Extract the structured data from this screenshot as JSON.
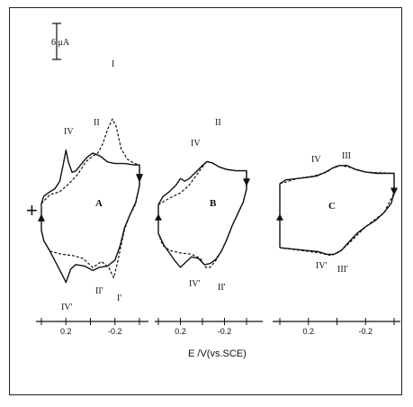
{
  "chart_data": {
    "type": "line",
    "scale_bar": {
      "label": "6 μA"
    },
    "xlabel": "E  /V(vs.SCE)",
    "plus_marker": "+",
    "panels": [
      {
        "label": "A",
        "xlim": [
          0.45,
          -0.45
        ],
        "ticks": [
          0.2,
          -0.2
        ],
        "tick_labels": [
          "0.2",
          "-0.2"
        ],
        "peak_labels": [
          "I",
          "II",
          "IV",
          "IV'",
          "II'",
          "I'"
        ],
        "series": [
          {
            "style": "solid",
            "points": [
              [
                0.4,
                -0.35
              ],
              [
                0.4,
                0.6
              ],
              [
                0.38,
                1.1
              ],
              [
                0.33,
                1.4
              ],
              [
                0.29,
                1.6
              ],
              [
                0.25,
                2.1
              ],
              [
                0.22,
                3.3
              ],
              [
                0.2,
                4.2
              ],
              [
                0.18,
                3.4
              ],
              [
                0.15,
                2.7
              ],
              [
                0.12,
                2.8
              ],
              [
                0.08,
                3.2
              ],
              [
                0.03,
                3.7
              ],
              [
                -0.02,
                4.0
              ],
              [
                -0.08,
                3.8
              ],
              [
                -0.14,
                3.4
              ],
              [
                -0.2,
                3.3
              ],
              [
                -0.28,
                3.3
              ],
              [
                -0.36,
                3.2
              ],
              [
                -0.4,
                3.2
              ],
              [
                -0.4,
                2.6
              ],
              [
                -0.4,
                1.8
              ],
              [
                -0.37,
                0.7
              ],
              [
                -0.32,
                -0.2
              ],
              [
                -0.28,
                -1.0
              ],
              [
                -0.24,
                -2.3
              ],
              [
                -0.2,
                -3.2
              ],
              [
                -0.14,
                -3.6
              ],
              [
                -0.07,
                -3.7
              ],
              [
                -0.02,
                -3.9
              ],
              [
                0.05,
                -3.6
              ],
              [
                0.12,
                -3.5
              ],
              [
                0.16,
                -3.8
              ],
              [
                0.2,
                -4.7
              ],
              [
                0.23,
                -4.2
              ],
              [
                0.28,
                -3.4
              ],
              [
                0.33,
                -2.6
              ],
              [
                0.38,
                -1.9
              ],
              [
                0.4,
                -1.2
              ],
              [
                0.4,
                -0.35
              ]
            ]
          },
          {
            "style": "dashed",
            "points": [
              [
                0.4,
                0.6
              ],
              [
                0.33,
                1.2
              ],
              [
                0.25,
                1.4
              ],
              [
                0.18,
                1.9
              ],
              [
                0.1,
                2.6
              ],
              [
                0.04,
                3.4
              ],
              [
                -0.02,
                3.8
              ],
              [
                -0.06,
                4.0
              ],
              [
                -0.1,
                4.6
              ],
              [
                -0.14,
                5.6
              ],
              [
                -0.18,
                6.3
              ],
              [
                -0.21,
                5.8
              ],
              [
                -0.25,
                4.3
              ],
              [
                -0.3,
                3.6
              ],
              [
                -0.36,
                3.3
              ],
              [
                -0.4,
                3.2
              ],
              [
                -0.4,
                1.8
              ],
              [
                -0.37,
                0.6
              ],
              [
                -0.32,
                -0.2
              ],
              [
                -0.28,
                -1.1
              ],
              [
                -0.25,
                -2.2
              ],
              [
                -0.22,
                -3.4
              ],
              [
                -0.19,
                -4.4
              ],
              [
                -0.15,
                -3.7
              ],
              [
                -0.09,
                -3.3
              ],
              [
                -0.02,
                -3.7
              ],
              [
                0.06,
                -3.1
              ],
              [
                0.14,
                -2.9
              ],
              [
                0.24,
                -2.8
              ],
              [
                0.33,
                -2.6
              ],
              [
                0.38,
                -1.9
              ],
              [
                0.4,
                -1.2
              ]
            ]
          }
        ]
      },
      {
        "label": "B",
        "xlim": [
          0.45,
          -0.45
        ],
        "ticks": [
          0.2,
          -0.2
        ],
        "tick_labels": [
          "0.2",
          "-0.2"
        ],
        "peak_labels": [
          "II",
          "IV",
          "IV'",
          "II'"
        ],
        "series": [
          {
            "style": "solid",
            "points": [
              [
                0.4,
                -0.35
              ],
              [
                0.4,
                0.6
              ],
              [
                0.36,
                1.2
              ],
              [
                0.3,
                1.6
              ],
              [
                0.24,
                2.1
              ],
              [
                0.2,
                2.6
              ],
              [
                0.16,
                2.4
              ],
              [
                0.12,
                2.6
              ],
              [
                0.06,
                3.1
              ],
              [
                0.0,
                3.6
              ],
              [
                -0.04,
                3.9
              ],
              [
                -0.09,
                3.8
              ],
              [
                -0.15,
                3.5
              ],
              [
                -0.22,
                3.3
              ],
              [
                -0.3,
                3.2
              ],
              [
                -0.38,
                3.2
              ],
              [
                -0.4,
                3.2
              ],
              [
                -0.4,
                2.6
              ],
              [
                -0.4,
                1.8
              ],
              [
                -0.37,
                0.8
              ],
              [
                -0.32,
                -0.1
              ],
              [
                -0.27,
                -1.0
              ],
              [
                -0.22,
                -2.1
              ],
              [
                -0.17,
                -3.0
              ],
              [
                -0.12,
                -3.6
              ],
              [
                -0.07,
                -3.9
              ],
              [
                -0.02,
                -4.0
              ],
              [
                0.04,
                -3.5
              ],
              [
                0.1,
                -3.4
              ],
              [
                0.15,
                -3.8
              ],
              [
                0.2,
                -4.2
              ],
              [
                0.25,
                -3.7
              ],
              [
                0.3,
                -3.1
              ],
              [
                0.35,
                -2.5
              ],
              [
                0.4,
                -1.6
              ],
              [
                0.4,
                -0.35
              ]
            ]
          },
          {
            "style": "dashed",
            "points": [
              [
                0.4,
                0.6
              ],
              [
                0.3,
                1.1
              ],
              [
                0.2,
                1.5
              ],
              [
                0.12,
                2.1
              ],
              [
                0.06,
                2.8
              ],
              [
                0.0,
                3.5
              ],
              [
                -0.04,
                3.9
              ],
              [
                -0.09,
                3.8
              ],
              [
                -0.15,
                3.5
              ],
              [
                -0.22,
                3.3
              ],
              [
                -0.3,
                3.2
              ],
              [
                -0.4,
                3.2
              ],
              [
                -0.4,
                1.8
              ],
              [
                -0.37,
                0.8
              ],
              [
                -0.32,
                -0.1
              ],
              [
                -0.27,
                -1.0
              ],
              [
                -0.22,
                -2.1
              ],
              [
                -0.17,
                -3.0
              ],
              [
                -0.12,
                -3.7
              ],
              [
                -0.07,
                -4.2
              ],
              [
                -0.03,
                -4.2
              ],
              [
                0.02,
                -3.5
              ],
              [
                0.1,
                -3.2
              ],
              [
                0.2,
                -3.1
              ],
              [
                0.3,
                -2.9
              ],
              [
                0.36,
                -2.5
              ],
              [
                0.4,
                -1.6
              ]
            ]
          }
        ]
      },
      {
        "label": "C",
        "xlim": [
          0.45,
          -0.45
        ],
        "ticks": [
          0.2,
          -0.2
        ],
        "tick_labels": [
          "0.2",
          "-0.2"
        ],
        "peak_labels": [
          "IV",
          "III",
          "IV'",
          "III'"
        ],
        "series": [
          {
            "style": "solid",
            "points": [
              [
                0.4,
                -2.7
              ],
              [
                0.4,
                -2.0
              ],
              [
                0.4,
                -0.5
              ],
              [
                0.4,
                0.8
              ],
              [
                0.4,
                2.2
              ],
              [
                0.36,
                2.5
              ],
              [
                0.28,
                2.6
              ],
              [
                0.2,
                2.7
              ],
              [
                0.14,
                2.8
              ],
              [
                0.08,
                3.1
              ],
              [
                0.03,
                3.4
              ],
              [
                -0.02,
                3.6
              ],
              [
                -0.07,
                3.6
              ],
              [
                -0.13,
                3.3
              ],
              [
                -0.2,
                3.1
              ],
              [
                -0.28,
                3.0
              ],
              [
                -0.35,
                3.0
              ],
              [
                -0.4,
                3.0
              ],
              [
                -0.4,
                2.4
              ],
              [
                -0.4,
                1.5
              ],
              [
                -0.38,
                0.7
              ],
              [
                -0.33,
                0.0
              ],
              [
                -0.27,
                -0.6
              ],
              [
                -0.2,
                -1.1
              ],
              [
                -0.14,
                -1.6
              ],
              [
                -0.08,
                -2.3
              ],
              [
                -0.03,
                -2.9
              ],
              [
                0.02,
                -3.2
              ],
              [
                0.07,
                -3.2
              ],
              [
                0.13,
                -3.0
              ],
              [
                0.22,
                -2.9
              ],
              [
                0.31,
                -2.8
              ],
              [
                0.4,
                -2.7
              ]
            ]
          },
          {
            "style": "dashed",
            "points": [
              [
                0.4,
                2.2
              ],
              [
                0.28,
                2.6
              ],
              [
                0.16,
                2.8
              ],
              [
                0.07,
                3.1
              ],
              [
                0.02,
                3.5
              ],
              [
                -0.02,
                3.6
              ],
              [
                -0.08,
                3.5
              ],
              [
                -0.2,
                3.1
              ],
              [
                -0.4,
                3.0
              ],
              [
                -0.4,
                1.5
              ],
              [
                -0.33,
                0.0
              ],
              [
                -0.2,
                -1.1
              ],
              [
                -0.08,
                -2.4
              ],
              [
                -0.02,
                -3.0
              ],
              [
                0.04,
                -3.3
              ],
              [
                0.12,
                -3.1
              ],
              [
                0.25,
                -2.9
              ],
              [
                0.4,
                -2.7
              ]
            ]
          }
        ]
      }
    ]
  }
}
